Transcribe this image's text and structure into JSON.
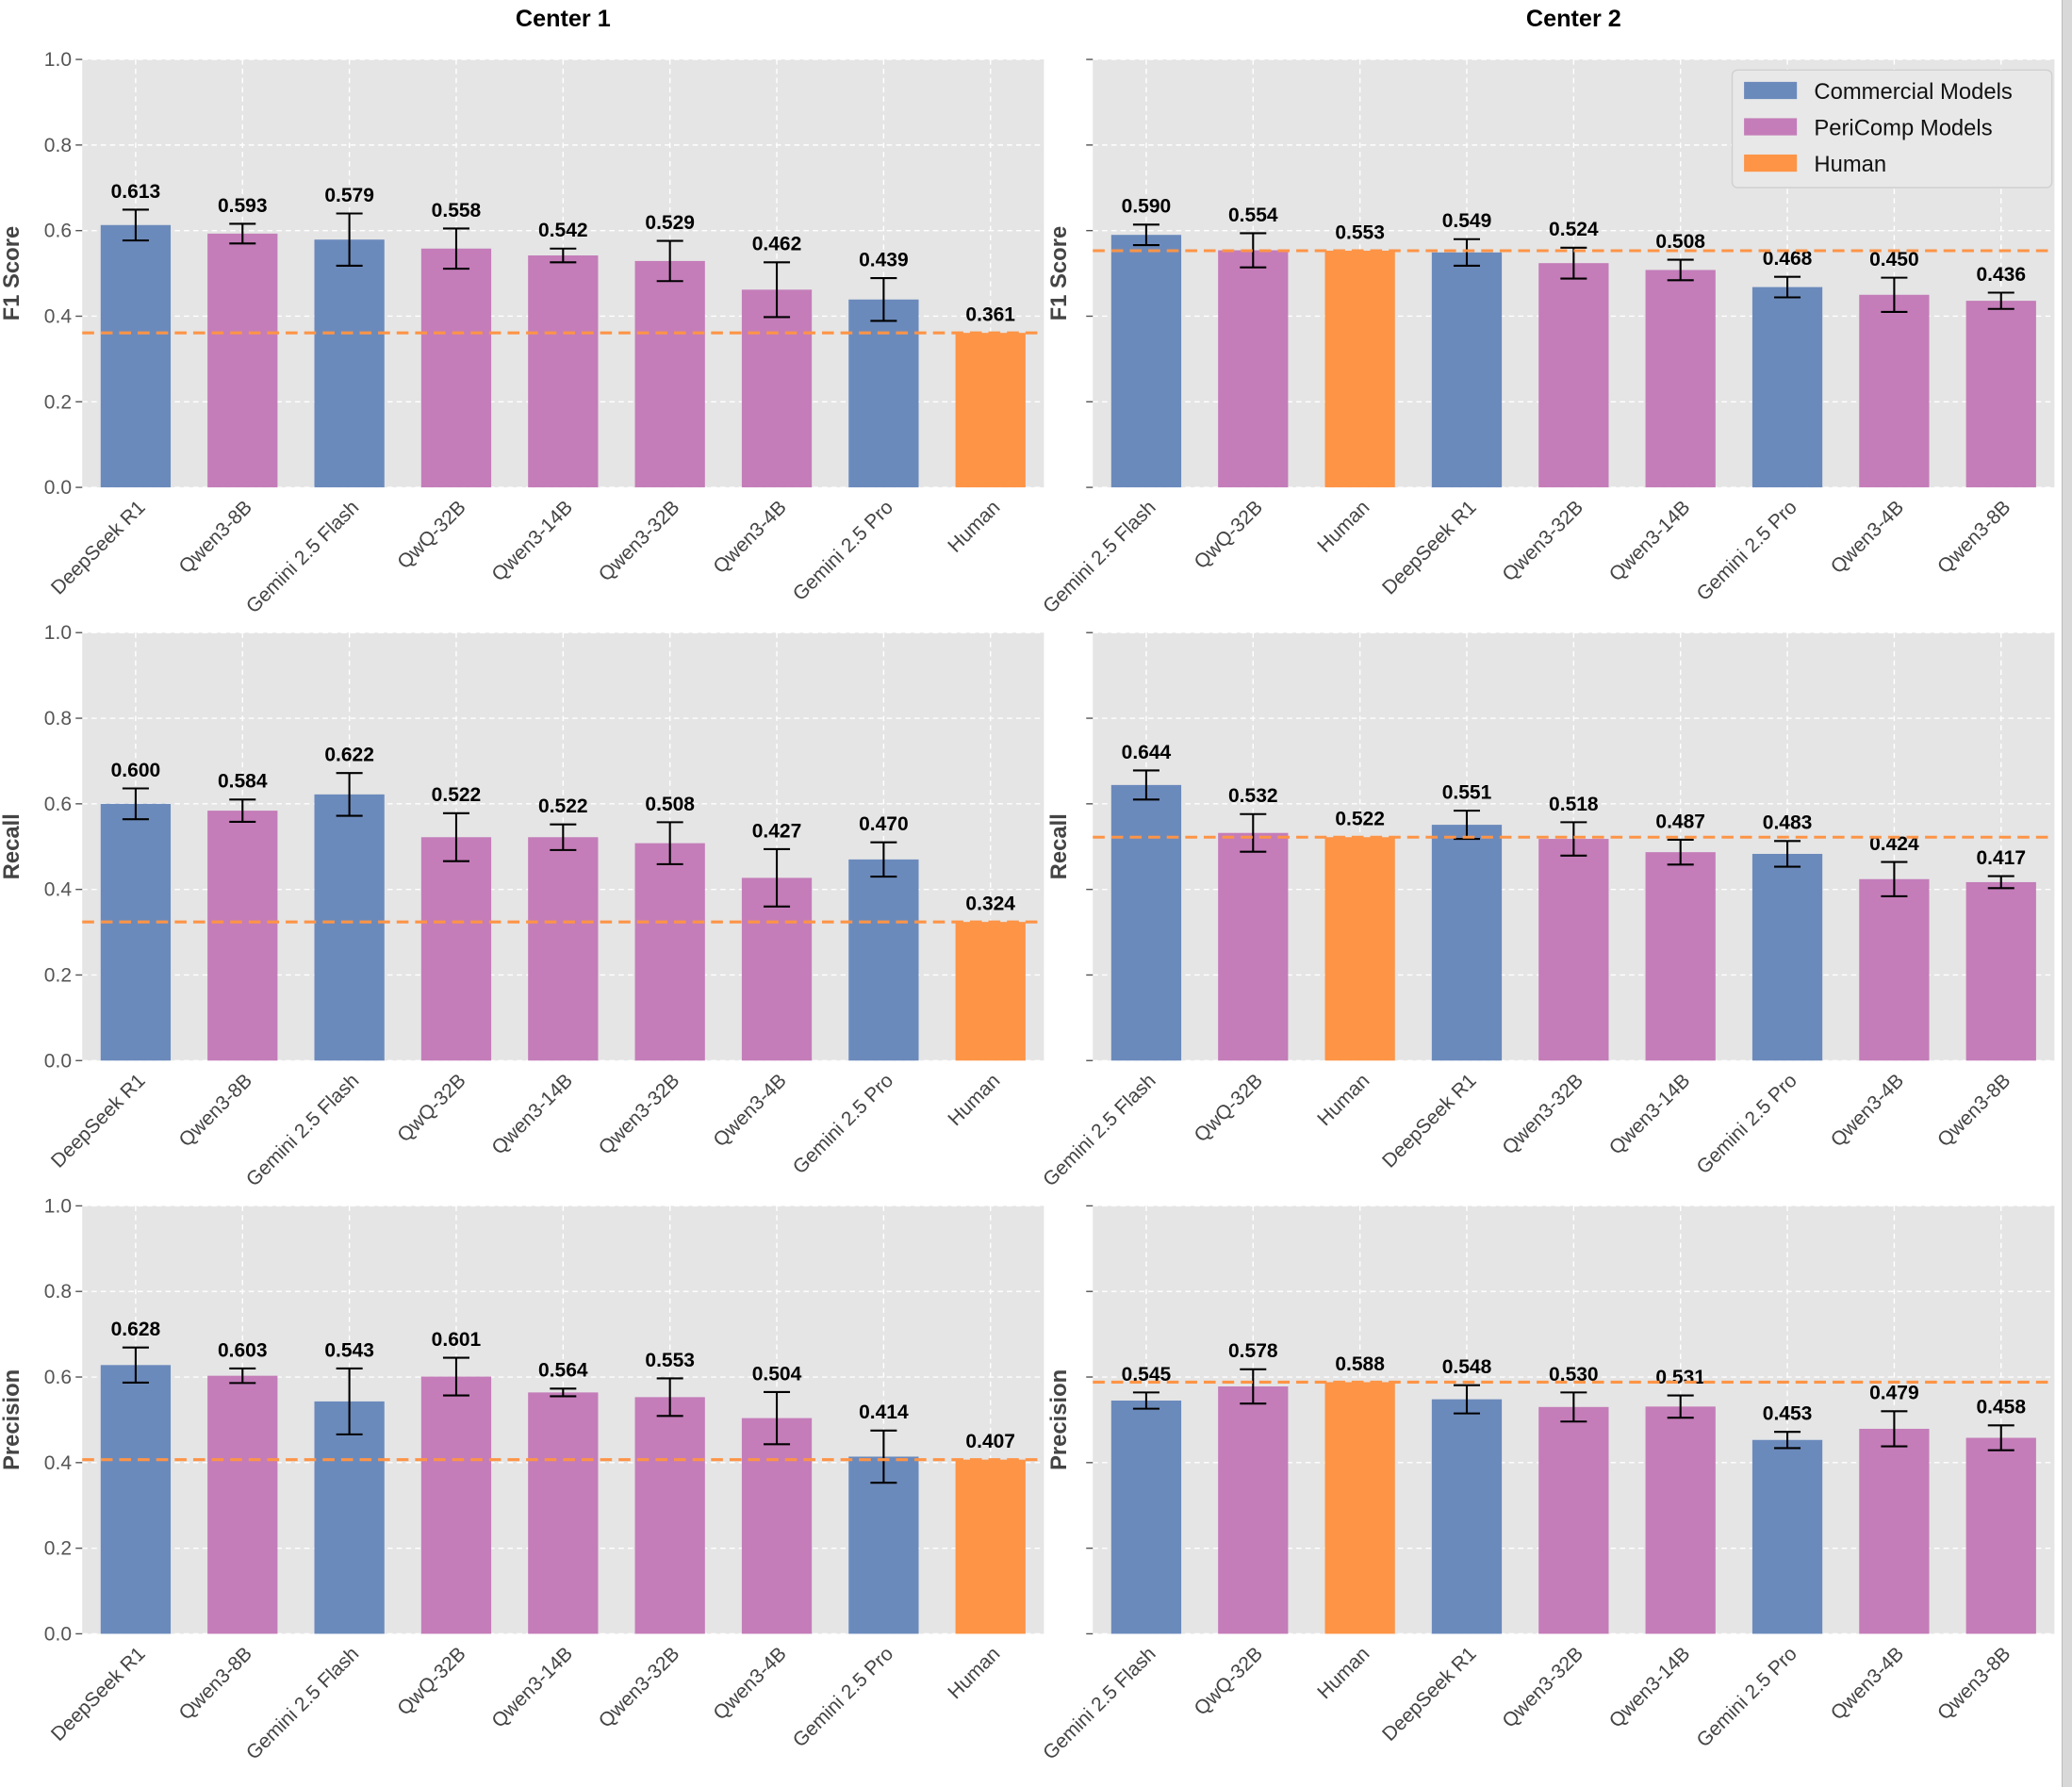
{
  "colors": {
    "Commercial Models": "#6b8abc",
    "PeriComp Models": "#c47db9",
    "Human": "#fd9446",
    "background": "#e5e5e5"
  },
  "legend": {
    "placement": "top-right",
    "entries": [
      "Commercial Models",
      "PeriComp Models",
      "Human"
    ]
  },
  "chart_data": [
    {
      "type": "bar",
      "title": "Center 1",
      "ylabel": "F1 Score",
      "ylim": [
        0,
        1
      ],
      "grid": true,
      "categories": [
        "DeepSeek R1",
        "Qwen3-8B",
        "Gemini 2.5 Flash",
        "QwQ-32B",
        "Qwen3-14B",
        "Qwen3-32B",
        "Qwen3-4B",
        "Gemini 2.5 Pro",
        "Human"
      ],
      "groups": [
        "Commercial Models",
        "PeriComp Models",
        "Commercial Models",
        "PeriComp Models",
        "PeriComp Models",
        "PeriComp Models",
        "PeriComp Models",
        "Commercial Models",
        "Human"
      ],
      "values": [
        0.613,
        0.593,
        0.579,
        0.558,
        0.542,
        0.529,
        0.462,
        0.439,
        0.361
      ],
      "errors": [
        0.036,
        0.023,
        0.061,
        0.047,
        0.016,
        0.047,
        0.064,
        0.05,
        0
      ],
      "reference_line": 0.361
    },
    {
      "type": "bar",
      "title": "Center 2",
      "ylabel": "F1 Score",
      "ylim": [
        0,
        1
      ],
      "grid": true,
      "categories": [
        "Gemini 2.5 Flash",
        "QwQ-32B",
        "Human",
        "DeepSeek R1",
        "Qwen3-32B",
        "Qwen3-14B",
        "Gemini 2.5 Pro",
        "Qwen3-4B",
        "Qwen3-8B"
      ],
      "groups": [
        "Commercial Models",
        "PeriComp Models",
        "Human",
        "Commercial Models",
        "PeriComp Models",
        "PeriComp Models",
        "Commercial Models",
        "PeriComp Models",
        "PeriComp Models"
      ],
      "values": [
        0.59,
        0.554,
        0.553,
        0.549,
        0.524,
        0.508,
        0.468,
        0.45,
        0.436
      ],
      "errors": [
        0.024,
        0.04,
        0,
        0.031,
        0.036,
        0.024,
        0.024,
        0.04,
        0.019
      ],
      "reference_line": 0.553
    },
    {
      "type": "bar",
      "title": "",
      "ylabel": "Recall",
      "ylim": [
        0,
        1
      ],
      "grid": true,
      "categories": [
        "DeepSeek R1",
        "Qwen3-8B",
        "Gemini 2.5 Flash",
        "QwQ-32B",
        "Qwen3-14B",
        "Qwen3-32B",
        "Qwen3-4B",
        "Gemini 2.5 Pro",
        "Human"
      ],
      "groups": [
        "Commercial Models",
        "PeriComp Models",
        "Commercial Models",
        "PeriComp Models",
        "PeriComp Models",
        "PeriComp Models",
        "PeriComp Models",
        "Commercial Models",
        "Human"
      ],
      "values": [
        0.6,
        0.584,
        0.622,
        0.522,
        0.522,
        0.508,
        0.427,
        0.47,
        0.324
      ],
      "errors": [
        0.036,
        0.026,
        0.05,
        0.056,
        0.03,
        0.049,
        0.067,
        0.04,
        0
      ],
      "reference_line": 0.324
    },
    {
      "type": "bar",
      "title": "",
      "ylabel": "Recall",
      "ylim": [
        0,
        1
      ],
      "grid": true,
      "categories": [
        "Gemini 2.5 Flash",
        "QwQ-32B",
        "Human",
        "DeepSeek R1",
        "Qwen3-32B",
        "Qwen3-14B",
        "Gemini 2.5 Pro",
        "Qwen3-4B",
        "Qwen3-8B"
      ],
      "groups": [
        "Commercial Models",
        "PeriComp Models",
        "Human",
        "Commercial Models",
        "PeriComp Models",
        "PeriComp Models",
        "Commercial Models",
        "PeriComp Models",
        "PeriComp Models"
      ],
      "values": [
        0.644,
        0.532,
        0.522,
        0.551,
        0.518,
        0.487,
        0.483,
        0.424,
        0.417
      ],
      "errors": [
        0.034,
        0.044,
        0,
        0.033,
        0.039,
        0.029,
        0.03,
        0.04,
        0.014
      ],
      "reference_line": 0.522
    },
    {
      "type": "bar",
      "title": "",
      "ylabel": "Precision",
      "ylim": [
        0,
        1
      ],
      "grid": true,
      "categories": [
        "DeepSeek R1",
        "Qwen3-8B",
        "Gemini 2.5 Flash",
        "QwQ-32B",
        "Qwen3-14B",
        "Qwen3-32B",
        "Qwen3-4B",
        "Gemini 2.5 Pro",
        "Human"
      ],
      "groups": [
        "Commercial Models",
        "PeriComp Models",
        "Commercial Models",
        "PeriComp Models",
        "PeriComp Models",
        "PeriComp Models",
        "PeriComp Models",
        "Commercial Models",
        "Human"
      ],
      "values": [
        0.628,
        0.603,
        0.543,
        0.601,
        0.564,
        0.553,
        0.504,
        0.414,
        0.407
      ],
      "errors": [
        0.041,
        0.017,
        0.077,
        0.044,
        0.009,
        0.044,
        0.061,
        0.061,
        0
      ],
      "reference_line": 0.407
    },
    {
      "type": "bar",
      "title": "",
      "ylabel": "Precision",
      "ylim": [
        0,
        1
      ],
      "grid": true,
      "categories": [
        "Gemini 2.5 Flash",
        "QwQ-32B",
        "Human",
        "DeepSeek R1",
        "Qwen3-32B",
        "Qwen3-14B",
        "Gemini 2.5 Pro",
        "Qwen3-4B",
        "Qwen3-8B"
      ],
      "groups": [
        "Commercial Models",
        "PeriComp Models",
        "Human",
        "Commercial Models",
        "PeriComp Models",
        "PeriComp Models",
        "Commercial Models",
        "PeriComp Models",
        "PeriComp Models"
      ],
      "values": [
        0.545,
        0.578,
        0.588,
        0.548,
        0.53,
        0.531,
        0.453,
        0.479,
        0.458
      ],
      "errors": [
        0.019,
        0.04,
        0,
        0.033,
        0.034,
        0.026,
        0.019,
        0.041,
        0.029
      ],
      "reference_line": 0.588
    }
  ],
  "yticks": [
    "0.0",
    "0.2",
    "0.4",
    "0.6",
    "0.8",
    "1.0"
  ]
}
